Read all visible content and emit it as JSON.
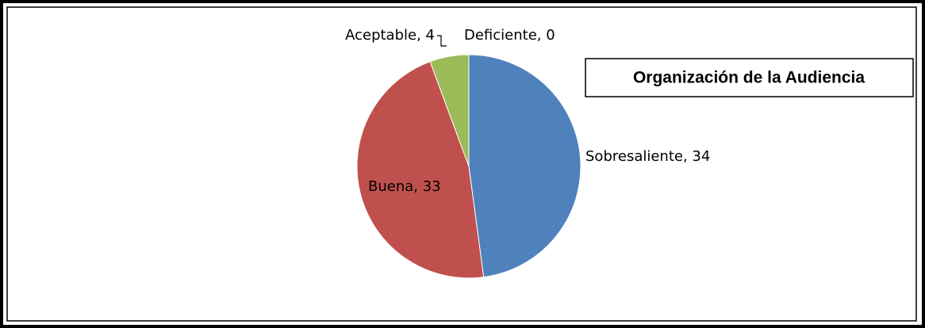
{
  "chart_data": {
    "type": "pie",
    "title": "Organización de la Audiencia",
    "values": [
      34,
      33,
      4,
      0
    ],
    "value_labels": [
      "Sobresaliente, 34",
      "Buena, 33",
      "Aceptable, 4",
      "Deficiente, 0"
    ],
    "colors": [
      "#4f81bd",
      "#c0504d",
      "#9bbb59",
      "#8064a2"
    ]
  }
}
